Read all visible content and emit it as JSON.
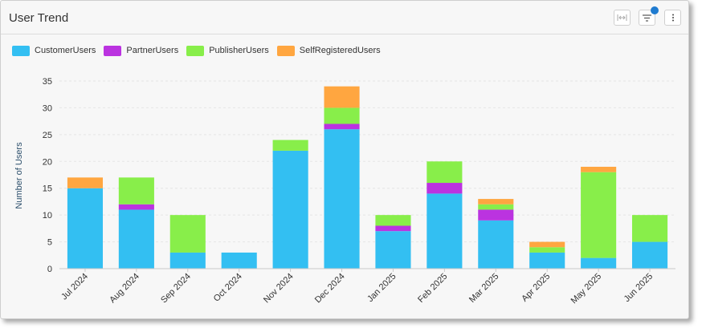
{
  "header": {
    "title": "User Trend",
    "buttons": [
      {
        "icon": "fit-width-icon"
      },
      {
        "icon": "filter-icon",
        "badge_color": "#1f7bd0"
      },
      {
        "icon": "more-vertical-icon"
      }
    ]
  },
  "chart_data": {
    "type": "bar",
    "stacked": true,
    "title": "",
    "xlabel": "",
    "ylabel": "Number of Users",
    "ylim": [
      0,
      35
    ],
    "yticks": [
      0,
      5,
      10,
      15,
      20,
      25,
      30,
      35
    ],
    "grid": true,
    "legend_position": "top-left",
    "categories": [
      "Jul 2024",
      "Aug 2024",
      "Sep 2024",
      "Oct 2024",
      "Nov 2024",
      "Dec 2024",
      "Jan 2025",
      "Feb 2025",
      "Mar 2025",
      "Apr 2025",
      "May 2025",
      "Jun 2025"
    ],
    "series": [
      {
        "name": "CustomerUsers",
        "color": "#33bff2",
        "values": [
          15,
          11,
          3,
          3,
          22,
          26,
          7,
          14,
          9,
          3,
          2,
          5
        ]
      },
      {
        "name": "PartnerUsers",
        "color": "#bb33e0",
        "values": [
          0,
          1,
          0,
          0,
          0,
          1,
          1,
          2,
          2,
          0,
          0,
          0
        ]
      },
      {
        "name": "PublisherUsers",
        "color": "#88ee4a",
        "values": [
          0,
          5,
          7,
          0,
          2,
          3,
          2,
          4,
          1,
          1,
          16,
          5
        ]
      },
      {
        "name": "SelfRegisteredUsers",
        "color": "#ffa640",
        "values": [
          2,
          0,
          0,
          0,
          0,
          4,
          0,
          0,
          1,
          1,
          1,
          0
        ]
      }
    ]
  }
}
